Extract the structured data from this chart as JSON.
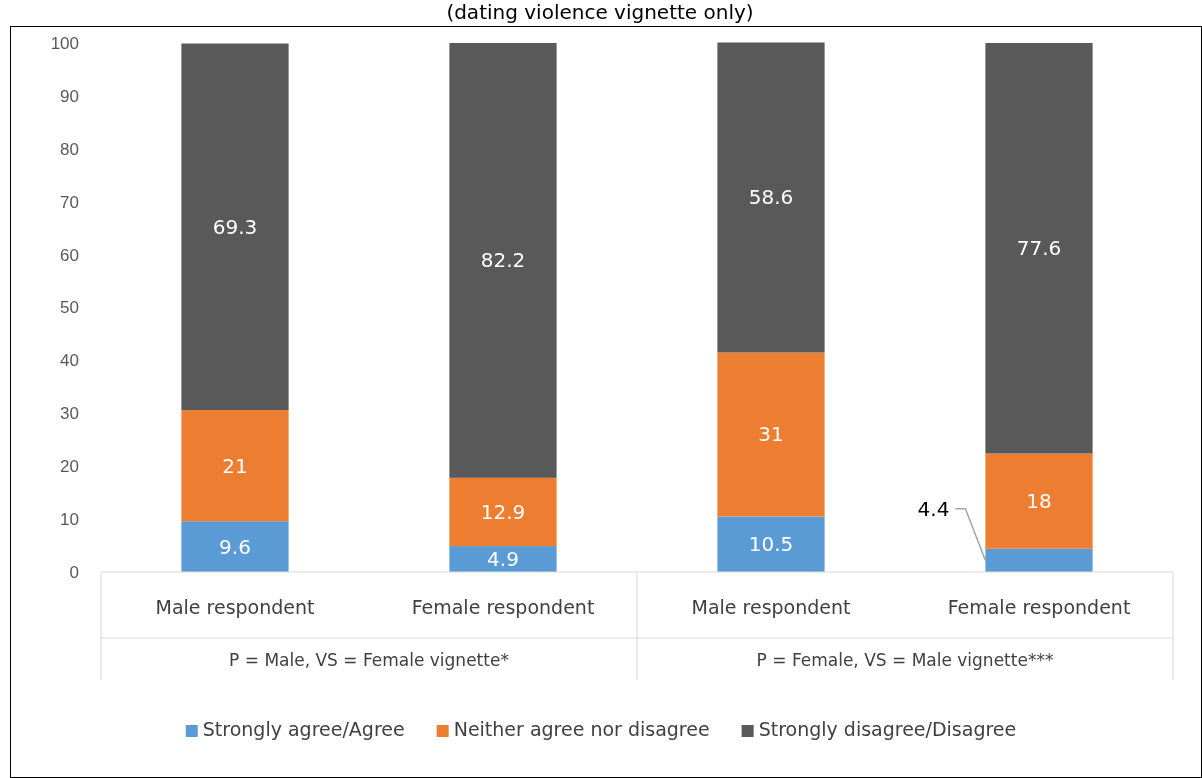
{
  "chart_data": {
    "type": "bar",
    "title": "(dating violence vignette only)",
    "stacked": true,
    "categories": [
      "Male respondent",
      "Female respondent",
      "Male respondent",
      "Female respondent"
    ],
    "series": [
      {
        "name": "Strongly agree/Agree",
        "color": "#5b9bd5",
        "values": [
          9.6,
          4.9,
          10.5,
          4.4
        ]
      },
      {
        "name": "Neither agree nor disagree",
        "color": "#ed7d31",
        "values": [
          21,
          12.9,
          31,
          18
        ]
      },
      {
        "name": "Strongly disagree/Disagree",
        "color": "#595959",
        "values": [
          69.3,
          82.2,
          58.6,
          77.6
        ]
      }
    ],
    "annotations": [
      "P = Male, VS = Female vignette*",
      "P = Female, VS = Male vignette***"
    ],
    "ylim": [
      0,
      100
    ],
    "yticks": [
      0,
      10,
      20,
      30,
      40,
      50,
      60,
      70,
      80,
      90,
      100
    ],
    "grid": false,
    "legend": "bottom",
    "data_labels": true
  }
}
